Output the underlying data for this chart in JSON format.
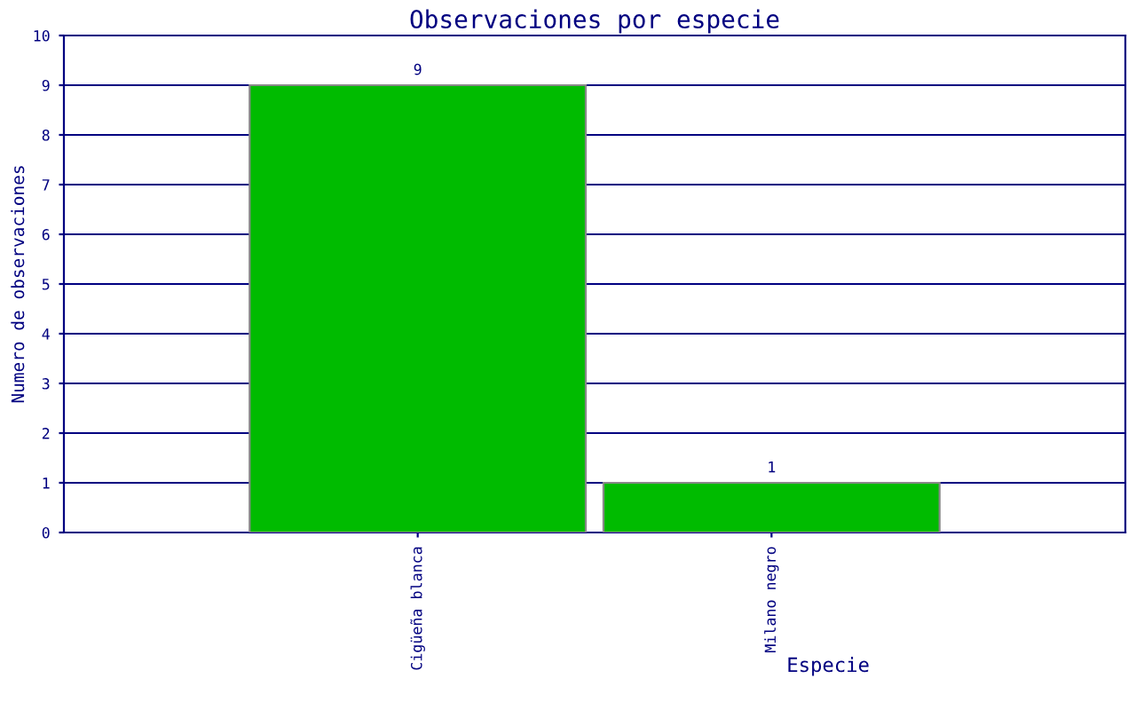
{
  "chart_data": {
    "type": "bar",
    "title": "Observaciones por especie",
    "xlabel": "Especie",
    "ylabel": "Numero de observaciones",
    "categories": [
      "Cigüeña blanca",
      "Milano negro"
    ],
    "values": [
      9,
      1
    ],
    "color": "#00bb00",
    "ylim": [
      0,
      10
    ],
    "yticks": [
      0,
      1,
      2,
      3,
      4,
      5,
      6,
      7,
      8,
      9,
      10
    ],
    "grid": "y",
    "data_labels": true
  }
}
